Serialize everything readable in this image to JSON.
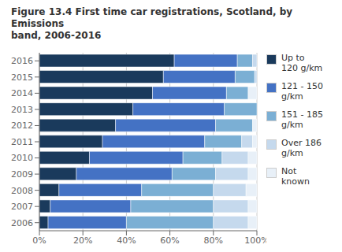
{
  "chart_data": {
    "type": "bar",
    "title": "Figure 13.4 First time car registrations, Scotland, by Emissions\nband, 2006-2016",
    "orientation": "horizontal",
    "stacked": true,
    "categories": [
      "2006",
      "2007",
      "2008",
      "2009",
      "2010",
      "2011",
      "2012",
      "2013",
      "2014",
      "2015",
      "2016"
    ],
    "series": [
      {
        "name": "Up to\n120 g/km",
        "color": "#1a3a5c",
        "values": [
          4,
          5,
          9,
          17,
          23,
          29,
          35,
          43,
          52,
          57,
          62
        ]
      },
      {
        "name": "121 - 150\ng/km",
        "color": "#4472c4",
        "values": [
          36,
          37,
          38,
          44,
          43,
          47,
          46,
          42,
          34,
          33,
          29
        ]
      },
      {
        "name": "151 - 185\ng/km",
        "color": "#7bafd4",
        "values": [
          40,
          38,
          33,
          20,
          18,
          17,
          17,
          15,
          10,
          9,
          7
        ]
      },
      {
        "name": "Over 186\ng/km",
        "color": "#c5d9ed",
        "values": [
          16,
          16,
          15,
          15,
          12,
          5,
          0,
          0,
          0,
          1,
          2
        ]
      },
      {
        "name": "Not\nknown",
        "color": "#e8f0f8",
        "values": [
          4,
          4,
          5,
          4,
          4,
          2,
          2,
          0,
          4,
          0,
          0
        ]
      }
    ],
    "xlim": [
      0,
      100
    ],
    "xticks": [
      {
        "value": 0,
        "label": "0%"
      },
      {
        "value": 20,
        "label": "20%"
      },
      {
        "value": 40,
        "label": "40%"
      },
      {
        "value": 60,
        "label": "60%"
      },
      {
        "value": 80,
        "label": "80%"
      },
      {
        "value": 100,
        "label": "100%"
      }
    ],
    "grid": true,
    "legend": "right"
  }
}
